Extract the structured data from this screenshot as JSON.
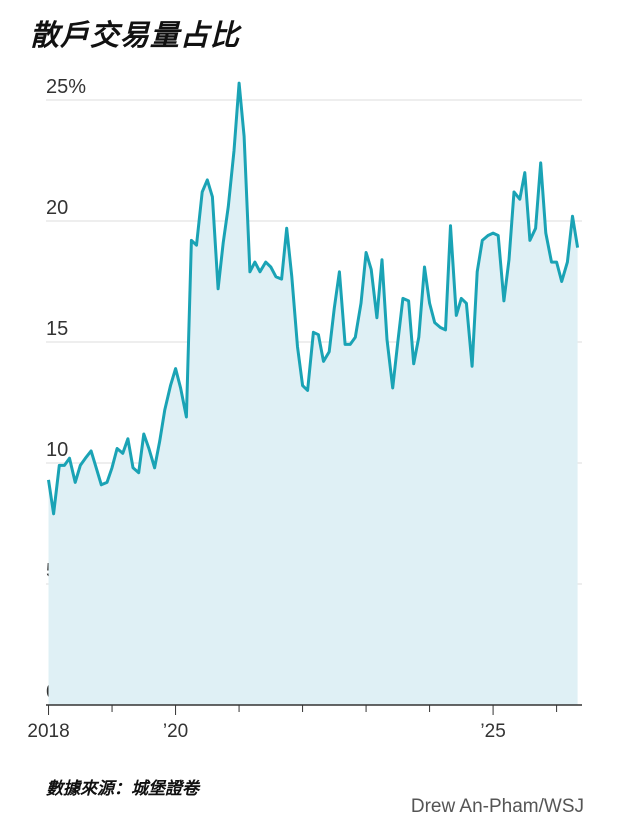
{
  "title": "散戶交易量占比",
  "source": "數據來源：城堡證卷",
  "credit": "Drew An-Pham/WSJ",
  "colors": {
    "line": "#1aa3b5",
    "area": "#dff0f5",
    "grid": "#dddddd",
    "axis": "#333333"
  },
  "chart_data": {
    "type": "area",
    "title": "散戶交易量占比",
    "ylim": [
      0,
      25
    ],
    "yticks": [
      {
        "value": 25,
        "label": "25%"
      },
      {
        "value": 20,
        "label": "20"
      },
      {
        "value": 15,
        "label": "15"
      },
      {
        "value": 10,
        "label": "10"
      },
      {
        "value": 5,
        "label": "5"
      },
      {
        "value": 0,
        "label": "0"
      }
    ],
    "xticks": [
      {
        "value": 2018.0,
        "label": "2018"
      },
      {
        "value": 2020.0,
        "label": "’20"
      },
      {
        "value": 2025.0,
        "label": "’25"
      }
    ],
    "xminor": [
      2019.0,
      2021.0,
      2022.0,
      2023.0,
      2024.0,
      2026.0
    ],
    "xlim": [
      2017.96,
      2026.4
    ],
    "grid": true,
    "series": [
      {
        "x": [
          2018.0,
          2018.08,
          2018.17,
          2018.25,
          2018.33,
          2018.42,
          2018.5,
          2018.58,
          2018.67,
          2018.75,
          2018.83,
          2018.92,
          2019.0,
          2019.08,
          2019.17,
          2019.25,
          2019.33,
          2019.42,
          2019.5,
          2019.58,
          2019.67,
          2019.75,
          2019.83,
          2019.92,
          2020.0,
          2020.08,
          2020.17,
          2020.25,
          2020.33,
          2020.42,
          2020.5,
          2020.58,
          2020.67,
          2020.75,
          2020.83,
          2020.92,
          2021.0,
          2021.08,
          2021.17,
          2021.25,
          2021.33,
          2021.42,
          2021.5,
          2021.58,
          2021.67,
          2021.75,
          2021.83,
          2021.92,
          2022.0,
          2022.08,
          2022.17,
          2022.25,
          2022.33,
          2022.42,
          2022.5,
          2022.58,
          2022.67,
          2022.75,
          2022.83,
          2022.92,
          2023.0,
          2023.08,
          2023.17,
          2023.25,
          2023.33,
          2023.42,
          2023.5,
          2023.58,
          2023.67,
          2023.75,
          2023.83,
          2023.92,
          2024.0,
          2024.08,
          2024.17,
          2024.25,
          2024.33,
          2024.42,
          2024.5,
          2024.58,
          2024.67,
          2024.75,
          2024.83,
          2024.92,
          2025.0,
          2025.08,
          2025.17,
          2025.25,
          2025.33,
          2025.42,
          2025.5,
          2025.58,
          2025.67,
          2025.75,
          2025.83,
          2025.92,
          2026.0,
          2026.08,
          2026.17,
          2026.25,
          2026.33
        ],
        "y": [
          9.3,
          7.9,
          9.9,
          9.9,
          10.2,
          9.2,
          9.9,
          10.2,
          10.5,
          9.8,
          9.1,
          9.2,
          9.8,
          10.6,
          10.4,
          11.0,
          9.8,
          9.6,
          11.2,
          10.6,
          9.8,
          10.9,
          12.2,
          13.2,
          13.9,
          13.1,
          11.9,
          19.2,
          19.0,
          21.2,
          21.7,
          21.0,
          17.2,
          19.1,
          20.6,
          22.9,
          25.7,
          23.5,
          17.9,
          18.3,
          17.9,
          18.3,
          18.1,
          17.7,
          17.6,
          19.7,
          17.7,
          14.8,
          13.2,
          13.0,
          15.4,
          15.3,
          14.2,
          14.6,
          16.4,
          17.9,
          14.9,
          14.9,
          15.2,
          16.6,
          18.7,
          18.0,
          16.0,
          18.4,
          15.1,
          13.1,
          15.0,
          16.8,
          16.7,
          14.1,
          15.2,
          18.1,
          16.6,
          15.8,
          15.6,
          15.5,
          19.8,
          16.1,
          16.8,
          16.6,
          14.0,
          17.9,
          19.2,
          19.4,
          19.5,
          19.4,
          16.7,
          18.4,
          21.2,
          20.9,
          22.0,
          19.2,
          19.7,
          22.4,
          19.5,
          18.3,
          18.3,
          17.5,
          18.3,
          20.2,
          18.9
        ]
      }
    ]
  }
}
